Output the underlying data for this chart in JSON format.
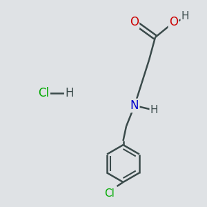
{
  "background_color": "#dfe2e5",
  "bond_color": "#3a4a4a",
  "oxygen_color": "#cc0000",
  "nitrogen_color": "#0000cc",
  "chlorine_color": "#00aa00",
  "hydrogen_color": "#3a4a4a",
  "figsize": [
    3.0,
    3.0
  ],
  "dpi": 100,
  "xlim": [
    0,
    10
  ],
  "ylim": [
    0,
    10
  ]
}
